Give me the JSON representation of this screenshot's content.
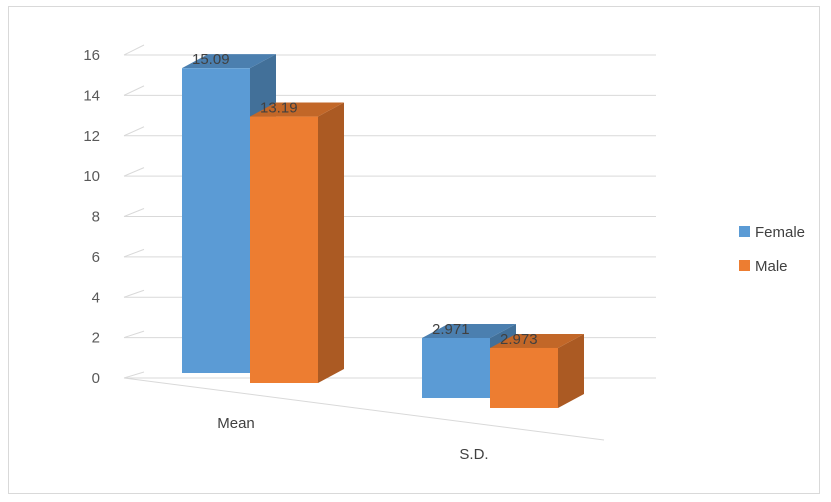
{
  "chart_data": {
    "type": "bar",
    "categories": [
      "Mean",
      "S.D."
    ],
    "series": [
      {
        "name": "Female",
        "values": [
          15.09,
          2.971
        ],
        "labels": [
          "15.09",
          "2.971"
        ],
        "color": "#5b9bd5"
      },
      {
        "name": "Male",
        "values": [
          13.19,
          2.973
        ],
        "labels": [
          "13.19",
          "2.973"
        ],
        "color": "#ed7d31"
      }
    ],
    "y_ticks": [
      "0",
      "2",
      "4",
      "6",
      "8",
      "10",
      "12",
      "14",
      "16"
    ],
    "ylim": [
      0,
      16
    ],
    "grid": true,
    "legend_position": "right",
    "style": "3d-clustered-column"
  }
}
